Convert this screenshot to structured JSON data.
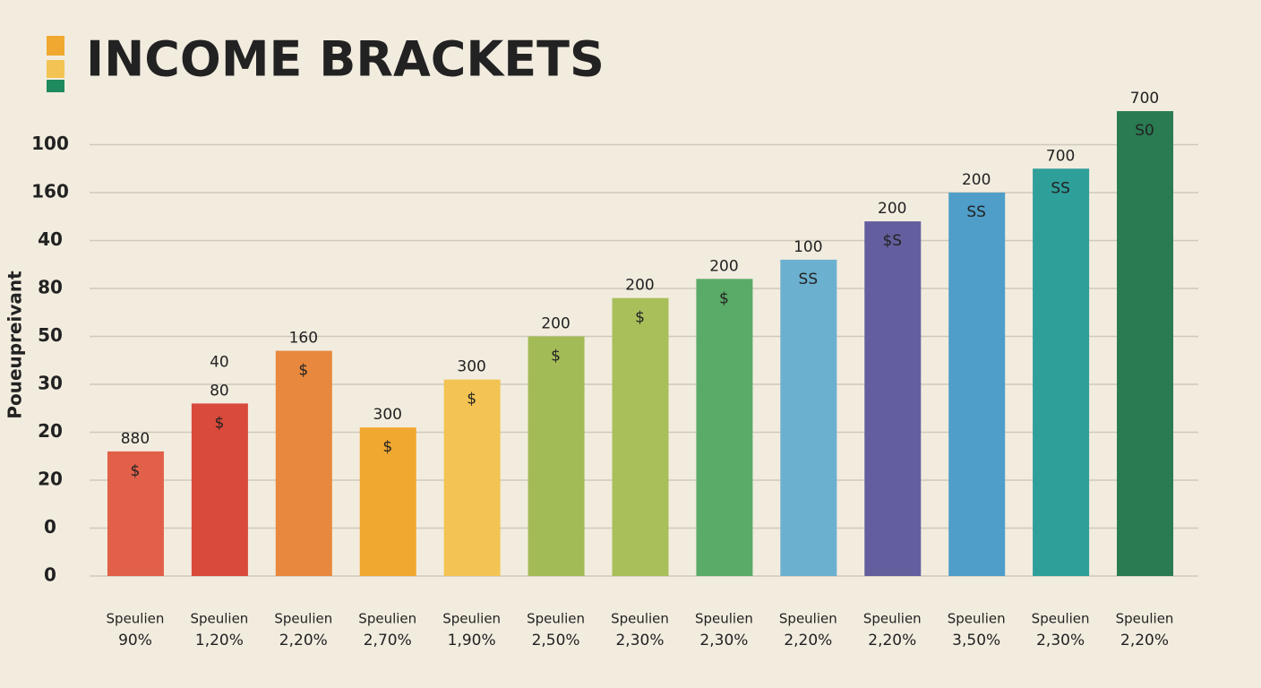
{
  "chart_data": {
    "type": "bar",
    "title": "INCOME BRACKETS",
    "y_label": "Poueupreivant",
    "categories": [
      "Speulien",
      "Speulien",
      "Speulien",
      "Speulien",
      "Speulien",
      "Speulien",
      "Speulien",
      "Speulien",
      "Speulien",
      "Speulien",
      "Speulien",
      "Speulien",
      "Speulien"
    ],
    "category_sublabels": [
      "90%",
      "1,20%",
      "2,20%",
      "2,70%",
      "1,90%",
      "2,50%",
      "2,30%",
      "2,30%",
      "2,20%",
      "2,20%",
      "3,50%",
      "2,30%",
      "2,20%"
    ],
    "values": [
      2.6,
      3.6,
      4.7,
      3.1,
      4.1,
      5.0,
      5.8,
      6.2,
      6.6,
      7.4,
      8.0,
      8.5,
      9.7
    ],
    "colors": [
      "#e2604a",
      "#d94a3a",
      "#e8883e",
      "#f0a830",
      "#f3c453",
      "#a3bb57",
      "#a8bf5a",
      "#5aaa68",
      "#6cb0cf",
      "#635f9e",
      "#4f9ec9",
      "#2f9f9a",
      "#2a7a52"
    ],
    "top_labels": [
      [
        "880"
      ],
      [
        "40",
        "80"
      ],
      [
        "160"
      ],
      [
        "300"
      ],
      [
        "300"
      ],
      [
        "200"
      ],
      [
        "200"
      ],
      [
        "200"
      ],
      [
        "100"
      ],
      [
        "200"
      ],
      [
        "200"
      ],
      [
        "700"
      ],
      [
        "700"
      ]
    ],
    "inner_labels": [
      "$",
      "$",
      "$",
      "$",
      "$",
      "$",
      "$",
      "$",
      "SS",
      "$S",
      "SS",
      "SS",
      "S0"
    ],
    "ylim": [
      0,
      10
    ],
    "yticks": [
      {
        "value": 0,
        "label": "0"
      },
      {
        "value": 1,
        "label": "0"
      },
      {
        "value": 2,
        "label": "20"
      },
      {
        "value": 3,
        "label": "20"
      },
      {
        "value": 4,
        "label": "30"
      },
      {
        "value": 5,
        "label": "50"
      },
      {
        "value": 6,
        "label": "80"
      },
      {
        "value": 7,
        "label": "40"
      },
      {
        "value": 8,
        "label": "160"
      },
      {
        "value": 9,
        "label": "100"
      }
    ],
    "grid": true
  }
}
